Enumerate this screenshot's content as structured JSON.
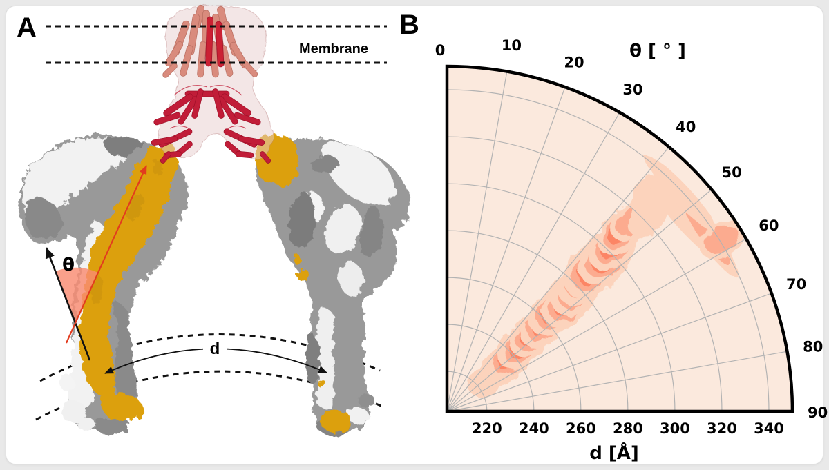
{
  "panel_a": {
    "label": "A",
    "membrane_label": "Membrane",
    "theta_symbol": "θ",
    "distance_symbol": "d",
    "colors": {
      "spike_gold": "#dca00c",
      "spike_gray": "#999999",
      "spike_white": "#f2f2f2",
      "antibody_crimson": "#c11d38",
      "antibody_salmon": "#d98b7d",
      "angle_wedge": "#f98b72",
      "tilt_arrow_red": "#e23b1e"
    }
  },
  "panel_b": {
    "label": "B"
  },
  "chart_data": {
    "type": "polar_contour",
    "title": "",
    "theta_axis": {
      "title": "θ [ ° ]",
      "unit": "deg",
      "min": 0,
      "max": 90,
      "tick_step": 10,
      "ticks": [
        0,
        10,
        20,
        30,
        40,
        50,
        60,
        70,
        80,
        90
      ]
    },
    "r_axis": {
      "title": "d [Å]",
      "unit": "Å",
      "min": 203,
      "max": 350,
      "ticks": [
        220,
        240,
        260,
        280,
        300,
        320,
        340
      ]
    },
    "grid": true,
    "legend_position": "none",
    "colormap": "Reds",
    "colors": {
      "background_level": "#fbe9dd",
      "grid": "#b3b3b3",
      "outline": "#000000",
      "levels": [
        "#fcd3bc",
        "#fcab8f",
        "#fc8565",
        "#f4573e",
        "#d32020",
        "#9e0d14",
        "#67000d"
      ]
    },
    "density_points": [
      {
        "d": 225,
        "theta": 52,
        "i": 0.1
      },
      {
        "d": 231,
        "theta": 50,
        "i": 0.22
      },
      {
        "d": 238,
        "theta": 50,
        "i": 0.42
      },
      {
        "d": 245,
        "theta": 49,
        "i": 0.5
      },
      {
        "d": 252,
        "theta": 48,
        "i": 0.45
      },
      {
        "d": 259,
        "theta": 48,
        "i": 0.6
      },
      {
        "d": 266,
        "theta": 47,
        "i": 0.7
      },
      {
        "d": 272,
        "theta": 48,
        "i": 0.62
      },
      {
        "d": 279,
        "theta": 47,
        "i": 0.72
      },
      {
        "d": 285,
        "theta": 46,
        "i": 0.88
      },
      {
        "d": 290,
        "theta": 46,
        "i": 1.0
      },
      {
        "d": 297,
        "theta": 46,
        "i": 0.78
      },
      {
        "d": 303,
        "theta": 45,
        "i": 0.6
      },
      {
        "d": 309,
        "theta": 44,
        "i": 0.45
      },
      {
        "d": 316,
        "theta": 44,
        "i": 0.3
      },
      {
        "d": 322,
        "theta": 46,
        "i": 0.22
      },
      {
        "d": 329,
        "theta": 43,
        "i": 0.14
      },
      {
        "d": 333,
        "theta": 50,
        "i": 0.2,
        "t": 1
      },
      {
        "d": 337,
        "theta": 55,
        "i": 0.25,
        "t": 1
      },
      {
        "d": 341,
        "theta": 58,
        "i": 0.32
      },
      {
        "d": 339,
        "theta": 47,
        "i": 0.12,
        "t": 1
      }
    ],
    "peak": {
      "d": 290,
      "theta": 46
    },
    "description": "2D density of paired-spike geometry: separation d (Angstrom) vs tilt angle theta (degrees). Ridge of density along theta 44-50 degrees for d 230-330 A, maximum near d 290 A / theta 46 deg, faint streaks near the outer arc at theta 45-60."
  }
}
